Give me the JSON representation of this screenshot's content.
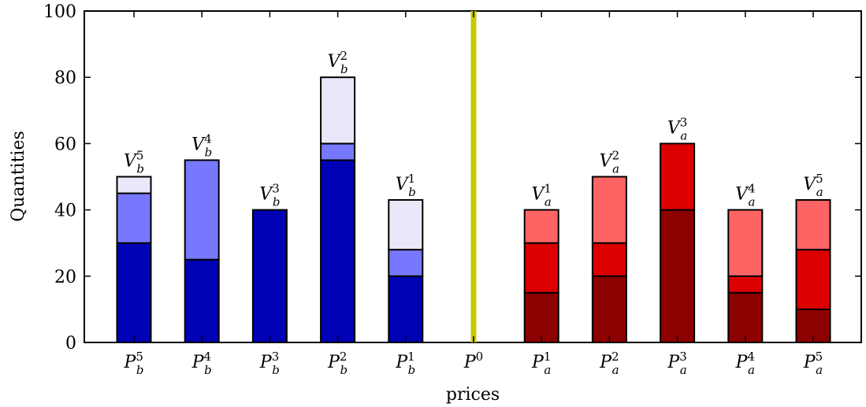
{
  "chart_data": {
    "type": "bar",
    "stacked": true,
    "xlabel": "prices",
    "ylabel": "Quantities",
    "ylim": [
      0,
      100
    ],
    "yticks": [
      0,
      20,
      40,
      60,
      80,
      100
    ],
    "grid": false,
    "reference_line": {
      "category": "P^0",
      "color": "#c8c800"
    },
    "categories": [
      {
        "base": "P",
        "sub": "b",
        "sup": "5"
      },
      {
        "base": "P",
        "sub": "b",
        "sup": "4"
      },
      {
        "base": "P",
        "sub": "b",
        "sup": "3"
      },
      {
        "base": "P",
        "sub": "b",
        "sup": "2"
      },
      {
        "base": "P",
        "sub": "b",
        "sup": "1"
      },
      {
        "base": "P",
        "sub": "",
        "sup": "0"
      },
      {
        "base": "P",
        "sub": "a",
        "sup": "1"
      },
      {
        "base": "P",
        "sub": "a",
        "sup": "2"
      },
      {
        "base": "P",
        "sub": "a",
        "sup": "3"
      },
      {
        "base": "P",
        "sub": "a",
        "sup": "4"
      },
      {
        "base": "P",
        "sub": "a",
        "sup": "5"
      }
    ],
    "bars": [
      {
        "category_index": 0,
        "side": "bid",
        "segments": [
          30,
          15,
          5
        ],
        "label": {
          "base": "V",
          "sub": "b",
          "sup": "5"
        }
      },
      {
        "category_index": 1,
        "side": "bid",
        "segments": [
          25,
          30,
          0
        ],
        "label": {
          "base": "V",
          "sub": "b",
          "sup": "4"
        }
      },
      {
        "category_index": 2,
        "side": "bid",
        "segments": [
          40,
          0,
          0
        ],
        "label": {
          "base": "V",
          "sub": "b",
          "sup": "3"
        }
      },
      {
        "category_index": 3,
        "side": "bid",
        "segments": [
          55,
          5,
          20
        ],
        "label": {
          "base": "V",
          "sub": "b",
          "sup": "2"
        }
      },
      {
        "category_index": 4,
        "side": "bid",
        "segments": [
          20,
          8,
          15
        ],
        "label": {
          "base": "V",
          "sub": "b",
          "sup": "1"
        }
      },
      {
        "category_index": 6,
        "side": "ask",
        "segments": [
          15,
          15,
          10
        ],
        "label": {
          "base": "V",
          "sub": "a",
          "sup": "1"
        }
      },
      {
        "category_index": 7,
        "side": "ask",
        "segments": [
          20,
          10,
          20
        ],
        "label": {
          "base": "V",
          "sub": "a",
          "sup": "2"
        }
      },
      {
        "category_index": 8,
        "side": "ask",
        "segments": [
          40,
          20,
          0
        ],
        "label": {
          "base": "V",
          "sub": "a",
          "sup": "3"
        }
      },
      {
        "category_index": 9,
        "side": "ask",
        "segments": [
          15,
          5,
          20
        ],
        "label": {
          "base": "V",
          "sub": "a",
          "sup": "4"
        }
      },
      {
        "category_index": 10,
        "side": "ask",
        "segments": [
          10,
          18,
          15
        ],
        "label": {
          "base": "V",
          "sub": "a",
          "sup": "5"
        }
      }
    ],
    "colors": {
      "bid": [
        "#0000b4",
        "#7878ff",
        "#e8e8fa"
      ],
      "ask": [
        "#8c0000",
        "#dc0000",
        "#ff6464"
      ]
    }
  }
}
